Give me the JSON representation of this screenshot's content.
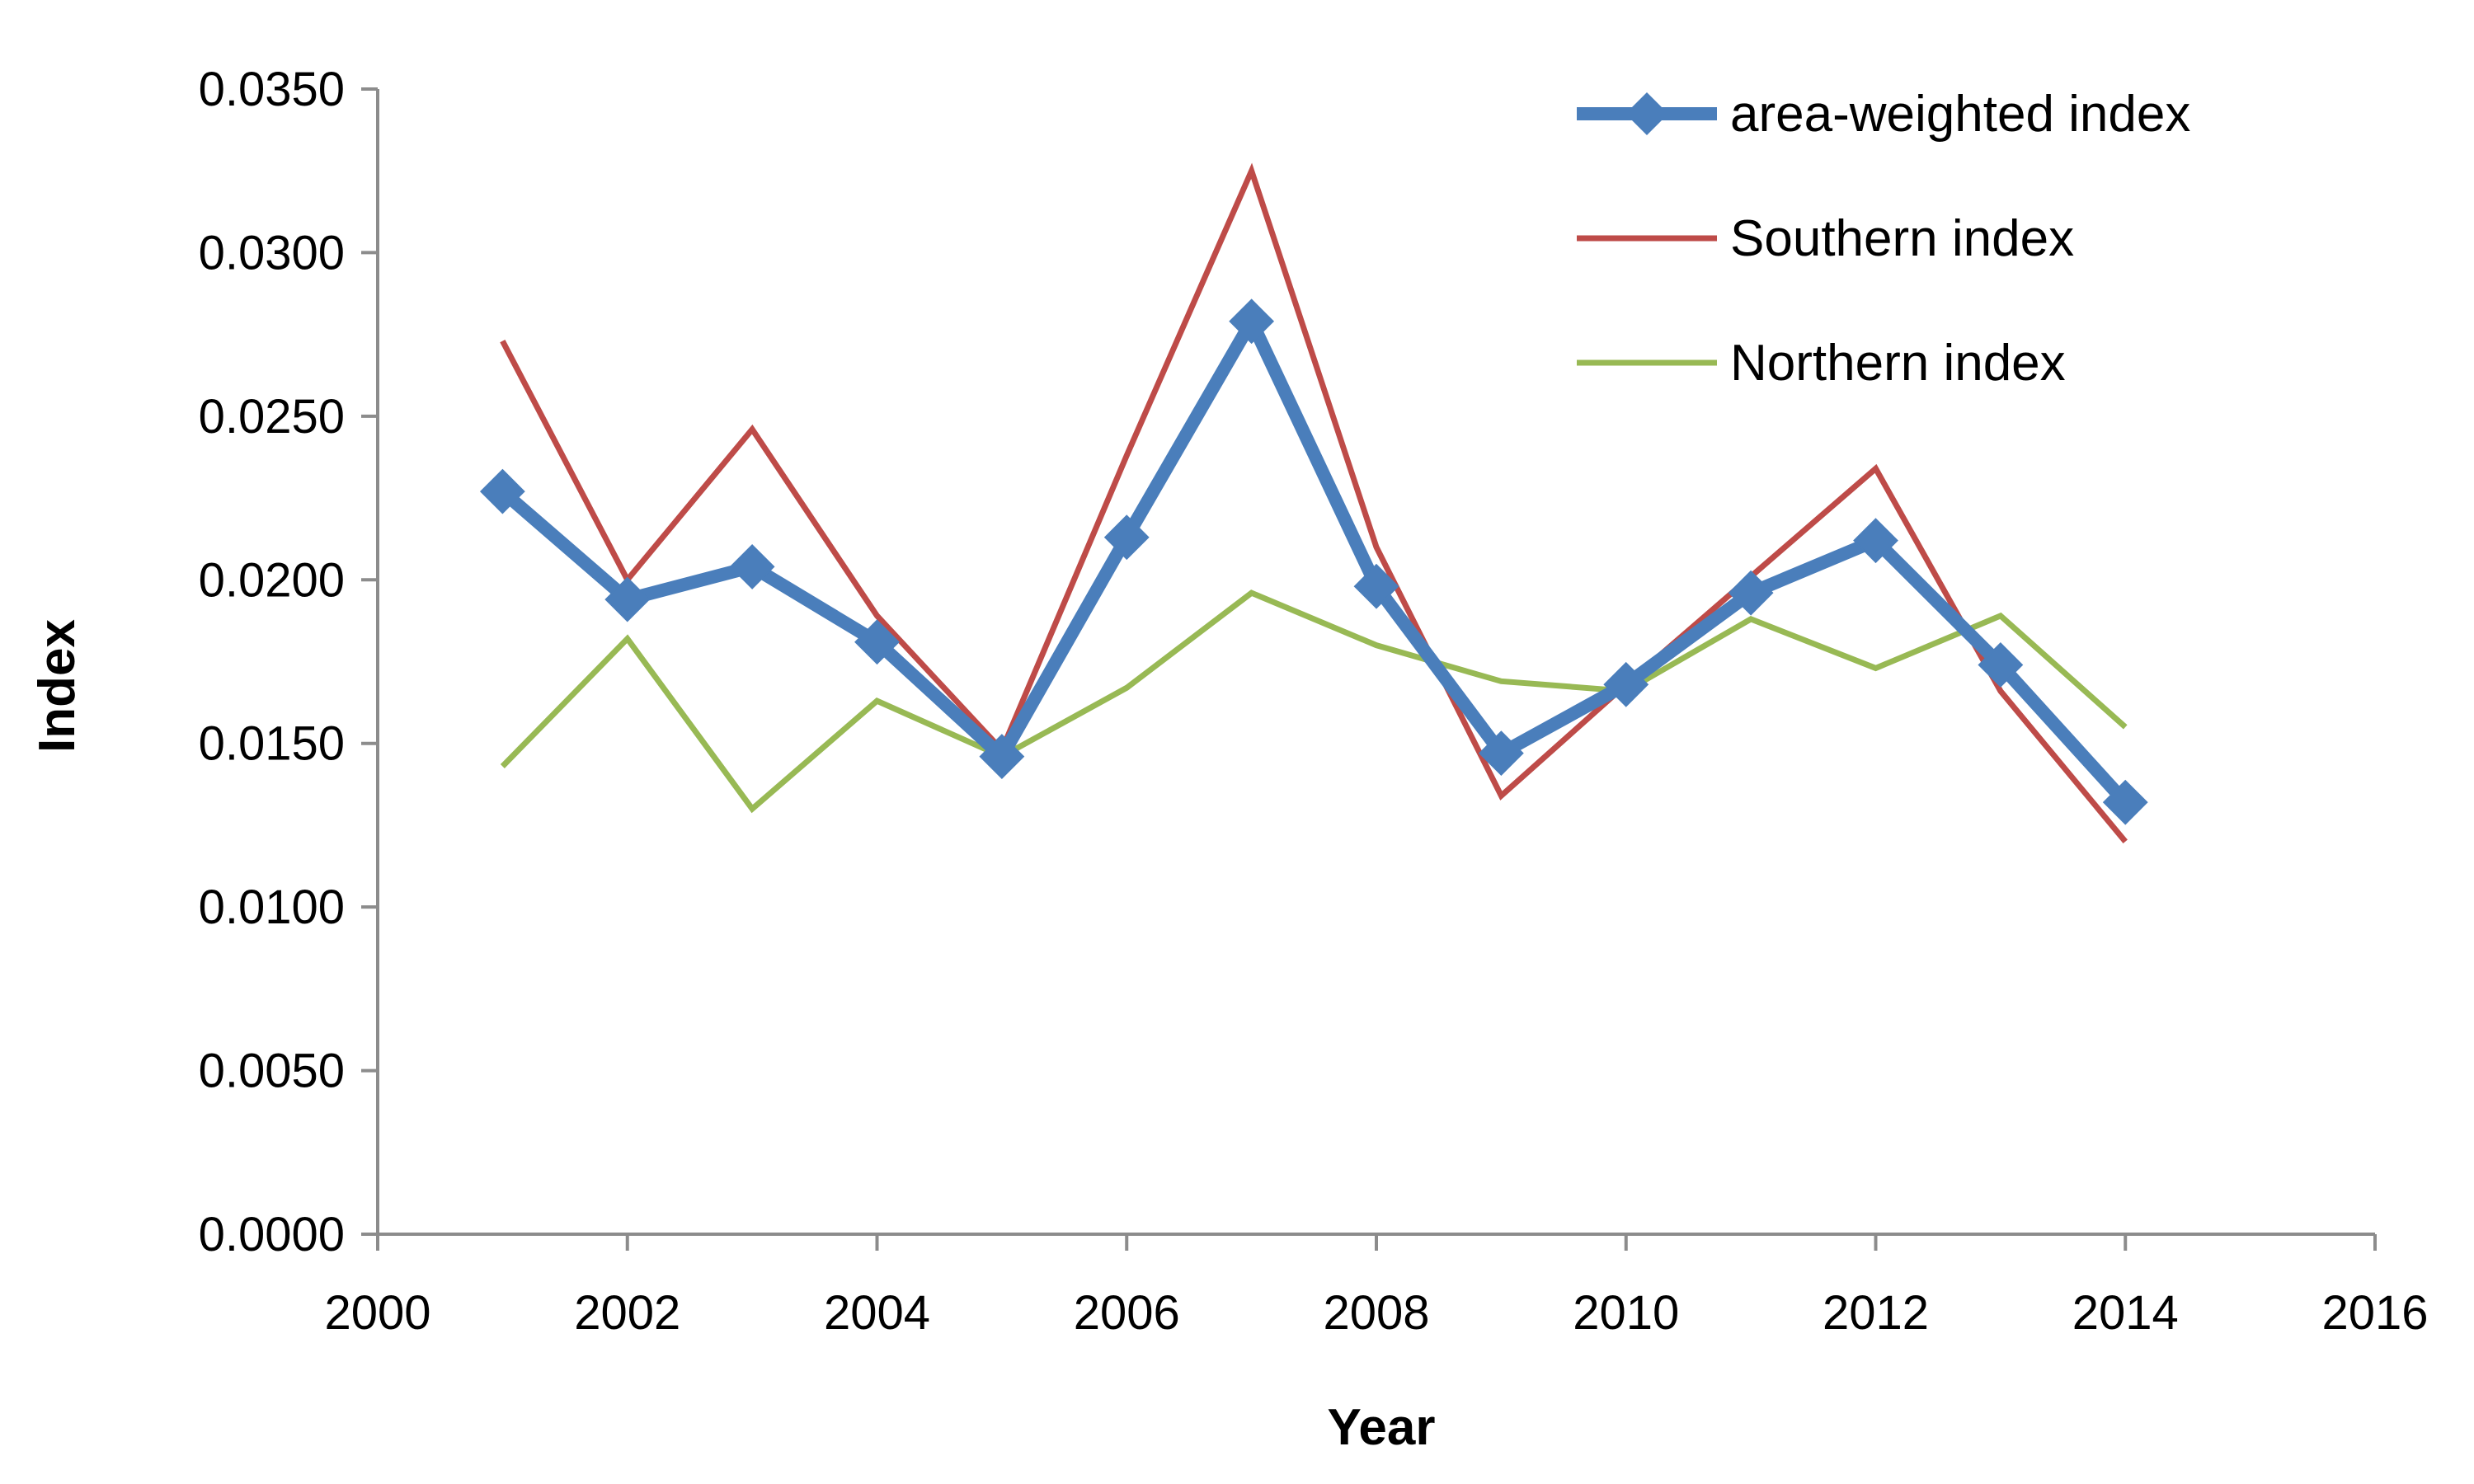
{
  "chart_data": {
    "type": "line",
    "title": "",
    "xlabel": "Year",
    "ylabel": "Index",
    "xlim": [
      2000,
      2016
    ],
    "ylim": [
      0.0,
      0.035
    ],
    "xticks": [
      2000,
      2002,
      2004,
      2006,
      2008,
      2010,
      2012,
      2014,
      2016
    ],
    "xtick_labels": [
      "2000",
      "2002",
      "2004",
      "2006",
      "2008",
      "2010",
      "2012",
      "2014",
      "2016"
    ],
    "yticks": [
      0.0,
      0.005,
      0.01,
      0.015,
      0.02,
      0.025,
      0.03,
      0.035
    ],
    "ytick_labels": [
      "0.0000",
      "0.0050",
      "0.0100",
      "0.0150",
      "0.0200",
      "0.0250",
      "0.0300",
      "0.0350"
    ],
    "grid": false,
    "legend_position": "top-right",
    "x": [
      2001,
      2002,
      2003,
      2004,
      2005,
      2006,
      2007,
      2008,
      2009,
      2010,
      2011,
      2012,
      2013,
      2014
    ],
    "series": [
      {
        "name": "area-weighted index",
        "color": "#4a7ebb",
        "marker": "diamond",
        "values": [
          0.0227,
          0.0194,
          0.0204,
          0.0181,
          0.0146,
          0.0213,
          0.0279,
          0.0198,
          0.0147,
          0.0168,
          0.0196,
          0.0212,
          0.0174,
          0.0132
        ]
      },
      {
        "name": "Southern index",
        "color": "#be4b48",
        "marker": "none",
        "values": [
          0.0273,
          0.02,
          0.0246,
          0.0189,
          0.0148,
          0.0238,
          0.0325,
          0.021,
          0.0134,
          0.0168,
          0.0201,
          0.0234,
          0.0166,
          0.012
        ]
      },
      {
        "name": "Northern index",
        "color": "#98b954",
        "marker": "none",
        "values": [
          0.0143,
          0.0182,
          0.013,
          0.0163,
          0.0146,
          0.0167,
          0.0196,
          0.018,
          0.0169,
          0.0166,
          0.0188,
          0.0173,
          0.0189,
          0.0155
        ]
      }
    ]
  }
}
